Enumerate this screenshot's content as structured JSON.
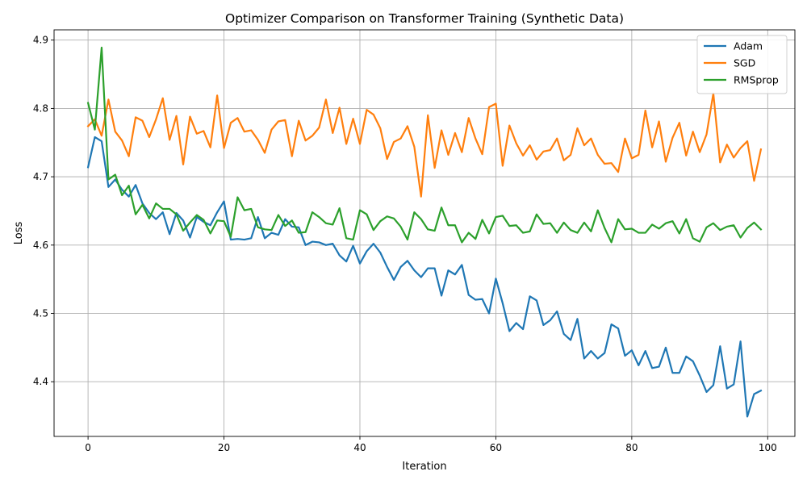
{
  "chart_data": {
    "type": "line",
    "title": "Optimizer Comparison on Transformer Training (Synthetic Data)",
    "xlabel": "Iteration",
    "ylabel": "Loss",
    "xlim": [
      -5,
      104
    ],
    "ylim": [
      4.32,
      4.915
    ],
    "xticks": [
      0,
      20,
      40,
      60,
      80,
      100
    ],
    "yticks": [
      4.4,
      4.5,
      4.6,
      4.7,
      4.8,
      4.9
    ],
    "grid": true,
    "legend": "top-right",
    "x": [
      0,
      1,
      2,
      3,
      4,
      5,
      6,
      7,
      8,
      9,
      10,
      11,
      12,
      13,
      14,
      15,
      16,
      17,
      18,
      19,
      20,
      21,
      22,
      23,
      24,
      25,
      26,
      27,
      28,
      29,
      30,
      31,
      32,
      33,
      34,
      35,
      36,
      37,
      38,
      39,
      40,
      41,
      42,
      43,
      44,
      45,
      46,
      47,
      48,
      49,
      50,
      51,
      52,
      53,
      54,
      55,
      56,
      57,
      58,
      59,
      60,
      61,
      62,
      63,
      64,
      65,
      66,
      67,
      68,
      69,
      70,
      71,
      72,
      73,
      74,
      75,
      76,
      77,
      78,
      79,
      80,
      81,
      82,
      83,
      84,
      85,
      86,
      87,
      88,
      89,
      90,
      91,
      92,
      93,
      94,
      95,
      96,
      97,
      98,
      99
    ],
    "series": [
      {
        "name": "Adam",
        "color": "#1f77b4",
        "values": [
          4.714,
          4.758,
          4.752,
          4.685,
          4.696,
          4.681,
          4.671,
          4.688,
          4.661,
          4.647,
          4.638,
          4.648,
          4.616,
          4.647,
          4.636,
          4.611,
          4.641,
          4.634,
          4.629,
          4.648,
          4.664,
          4.608,
          4.609,
          4.608,
          4.61,
          4.641,
          4.61,
          4.618,
          4.615,
          4.638,
          4.627,
          4.626,
          4.6,
          4.605,
          4.604,
          4.6,
          4.602,
          4.585,
          4.576,
          4.599,
          4.573,
          4.591,
          4.602,
          4.589,
          4.568,
          4.549,
          4.568,
          4.577,
          4.563,
          4.553,
          4.566,
          4.566,
          4.526,
          4.563,
          4.557,
          4.571,
          4.527,
          4.52,
          4.521,
          4.5,
          4.551,
          4.515,
          4.474,
          4.486,
          4.477,
          4.525,
          4.519,
          4.483,
          4.49,
          4.503,
          4.47,
          4.461,
          4.492,
          4.434,
          4.445,
          4.434,
          4.442,
          4.484,
          4.478,
          4.438,
          4.446,
          4.424,
          4.445,
          4.42,
          4.422,
          4.45,
          4.413,
          4.413,
          4.437,
          4.43,
          4.409,
          4.385,
          4.395,
          4.452,
          4.39,
          4.396,
          4.459,
          4.349,
          4.382,
          4.387
        ]
      },
      {
        "name": "SGD",
        "color": "#ff7f0e",
        "values": [
          4.774,
          4.784,
          4.76,
          4.813,
          4.766,
          4.753,
          4.73,
          4.787,
          4.782,
          4.758,
          4.784,
          4.815,
          4.754,
          4.789,
          4.718,
          4.788,
          4.763,
          4.767,
          4.743,
          4.819,
          4.742,
          4.779,
          4.786,
          4.766,
          4.768,
          4.754,
          4.735,
          4.769,
          4.781,
          4.783,
          4.73,
          4.782,
          4.753,
          4.76,
          4.772,
          4.813,
          4.764,
          4.801,
          4.748,
          4.785,
          4.748,
          4.798,
          4.791,
          4.771,
          4.726,
          4.751,
          4.756,
          4.774,
          4.744,
          4.671,
          4.79,
          4.713,
          4.768,
          4.732,
          4.764,
          4.736,
          4.786,
          4.756,
          4.733,
          4.802,
          4.807,
          4.716,
          4.775,
          4.749,
          4.731,
          4.746,
          4.725,
          4.737,
          4.739,
          4.756,
          4.724,
          4.732,
          4.771,
          4.746,
          4.756,
          4.732,
          4.719,
          4.72,
          4.707,
          4.756,
          4.727,
          4.732,
          4.797,
          4.743,
          4.781,
          4.722,
          4.757,
          4.779,
          4.731,
          4.766,
          4.736,
          4.762,
          4.822,
          4.721,
          4.747,
          4.728,
          4.742,
          4.752,
          4.694,
          4.74
        ]
      },
      {
        "name": "RMSprop",
        "color": "#2ca02c",
        "values": [
          4.808,
          4.769,
          4.889,
          4.696,
          4.703,
          4.673,
          4.687,
          4.645,
          4.659,
          4.639,
          4.661,
          4.653,
          4.653,
          4.645,
          4.621,
          4.633,
          4.644,
          4.637,
          4.617,
          4.636,
          4.635,
          4.612,
          4.67,
          4.651,
          4.653,
          4.626,
          4.623,
          4.622,
          4.644,
          4.628,
          4.636,
          4.618,
          4.619,
          4.648,
          4.641,
          4.632,
          4.63,
          4.654,
          4.61,
          4.608,
          4.651,
          4.645,
          4.622,
          4.635,
          4.642,
          4.639,
          4.627,
          4.608,
          4.648,
          4.638,
          4.623,
          4.621,
          4.655,
          4.629,
          4.629,
          4.604,
          4.618,
          4.609,
          4.637,
          4.617,
          4.641,
          4.643,
          4.628,
          4.629,
          4.618,
          4.62,
          4.645,
          4.631,
          4.632,
          4.618,
          4.633,
          4.622,
          4.618,
          4.633,
          4.62,
          4.651,
          4.625,
          4.604,
          4.638,
          4.623,
          4.624,
          4.618,
          4.618,
          4.63,
          4.624,
          4.632,
          4.635,
          4.617,
          4.638,
          4.61,
          4.605,
          4.626,
          4.632,
          4.622,
          4.627,
          4.629,
          4.611,
          4.625,
          4.633,
          4.623
        ]
      }
    ]
  }
}
